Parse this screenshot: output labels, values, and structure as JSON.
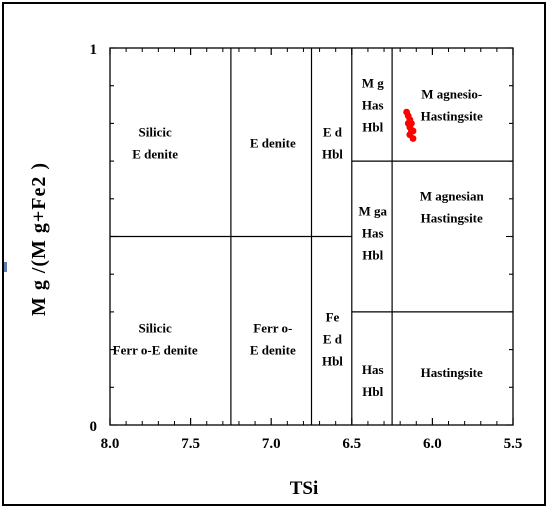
{
  "chart_data": {
    "type": "scatter",
    "title": "",
    "xlabel": "TSi",
    "ylabel": "M g /(M g+Fe2 )",
    "xlim": [
      8.0,
      5.5
    ],
    "ylim": [
      0,
      1
    ],
    "x_reversed": true,
    "grid": false,
    "x_ticks": [
      8.0,
      7.5,
      7.0,
      6.5,
      6.0,
      5.5
    ],
    "x_tick_labels": [
      "8.0",
      "7.5",
      "7.0",
      "6.5",
      "6.0",
      "5.5"
    ],
    "y_tick_labels": [
      "0",
      "1"
    ],
    "field_boundaries": {
      "vertical": [
        7.25,
        6.75,
        6.5,
        6.25
      ],
      "horizontal_full_width_y": 0.5,
      "horizontal_right_y": [
        0.7,
        0.3
      ]
    },
    "regions": [
      {
        "lines": [
          "Silicic",
          "E denite"
        ],
        "x": 7.72,
        "y": 0.75
      },
      {
        "lines": [
          "E denite"
        ],
        "x": 6.99,
        "y": 0.75
      },
      {
        "lines": [
          "E d",
          "Hbl"
        ],
        "x": 6.62,
        "y": 0.75
      },
      {
        "lines": [
          "M g",
          "Has",
          "Hbl"
        ],
        "x": 6.37,
        "y": 0.85
      },
      {
        "lines": [
          "M agnesio-",
          "Hastingsite"
        ],
        "x": 5.88,
        "y": 0.85
      },
      {
        "lines": [
          "M ga",
          "Has",
          "Hbl"
        ],
        "x": 6.37,
        "y": 0.51
      },
      {
        "lines": [
          "M agnesian",
          "Hastingsite"
        ],
        "x": 5.88,
        "y": 0.58
      },
      {
        "lines": [
          "Silicic",
          "Ferr o-E denite"
        ],
        "x": 7.72,
        "y": 0.23
      },
      {
        "lines": [
          "Ferr o-",
          "E denite"
        ],
        "x": 6.99,
        "y": 0.23
      },
      {
        "lines": [
          "Fe",
          "E d",
          "Hbl"
        ],
        "x": 6.62,
        "y": 0.23
      },
      {
        "lines": [
          "Has",
          "Hbl"
        ],
        "x": 6.37,
        "y": 0.12
      },
      {
        "lines": [
          "Hastingsite"
        ],
        "x": 5.88,
        "y": 0.14
      }
    ],
    "series": [
      {
        "color": "#ff0000",
        "points": [
          {
            "x": 6.16,
            "y": 0.83
          },
          {
            "x": 6.15,
            "y": 0.82
          },
          {
            "x": 6.14,
            "y": 0.81
          },
          {
            "x": 6.13,
            "y": 0.8
          },
          {
            "x": 6.15,
            "y": 0.8
          },
          {
            "x": 6.14,
            "y": 0.79
          },
          {
            "x": 6.13,
            "y": 0.78
          },
          {
            "x": 6.12,
            "y": 0.78
          },
          {
            "x": 6.14,
            "y": 0.77
          },
          {
            "x": 6.12,
            "y": 0.76
          }
        ]
      }
    ]
  }
}
